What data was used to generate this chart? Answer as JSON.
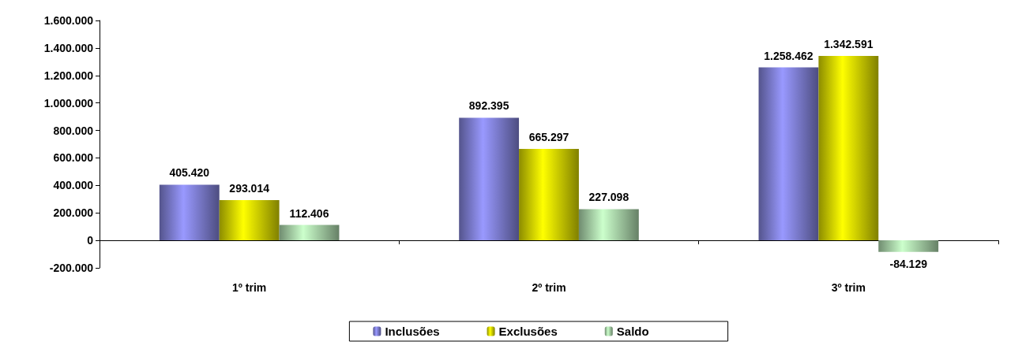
{
  "chart_data": {
    "type": "bar",
    "categories": [
      "1º trim",
      "2º trim",
      "3º trim"
    ],
    "series": [
      {
        "name": "Inclusões",
        "color": "#9999ff",
        "values": [
          405420,
          892395,
          1258462
        ],
        "value_labels": [
          "405.420",
          "892.395",
          "1.258.462"
        ]
      },
      {
        "name": "Exclusões",
        "color": "#ffff00",
        "values": [
          293014,
          665297,
          1342591
        ],
        "value_labels": [
          "293.014",
          "665.297",
          "1.342.591"
        ]
      },
      {
        "name": "Saldo",
        "color": "#ccffcc",
        "values": [
          112406,
          227098,
          -84129
        ],
        "value_labels": [
          "112.406",
          "227.098",
          "-84.129"
        ]
      }
    ],
    "ylim": [
      -200000,
      1600000
    ],
    "yticks": [
      {
        "value": -200000,
        "label": "-200.000"
      },
      {
        "value": 0,
        "label": "0"
      },
      {
        "value": 200000,
        "label": "200.000"
      },
      {
        "value": 400000,
        "label": "400.000"
      },
      {
        "value": 600000,
        "label": "600.000"
      },
      {
        "value": 800000,
        "label": "800.000"
      },
      {
        "value": 1000000,
        "label": "1.000.000"
      },
      {
        "value": 1200000,
        "label": "1.200.000"
      },
      {
        "value": 1400000,
        "label": "1.400.000"
      },
      {
        "value": 1600000,
        "label": "1.600.000"
      }
    ],
    "legend": "bottom"
  }
}
